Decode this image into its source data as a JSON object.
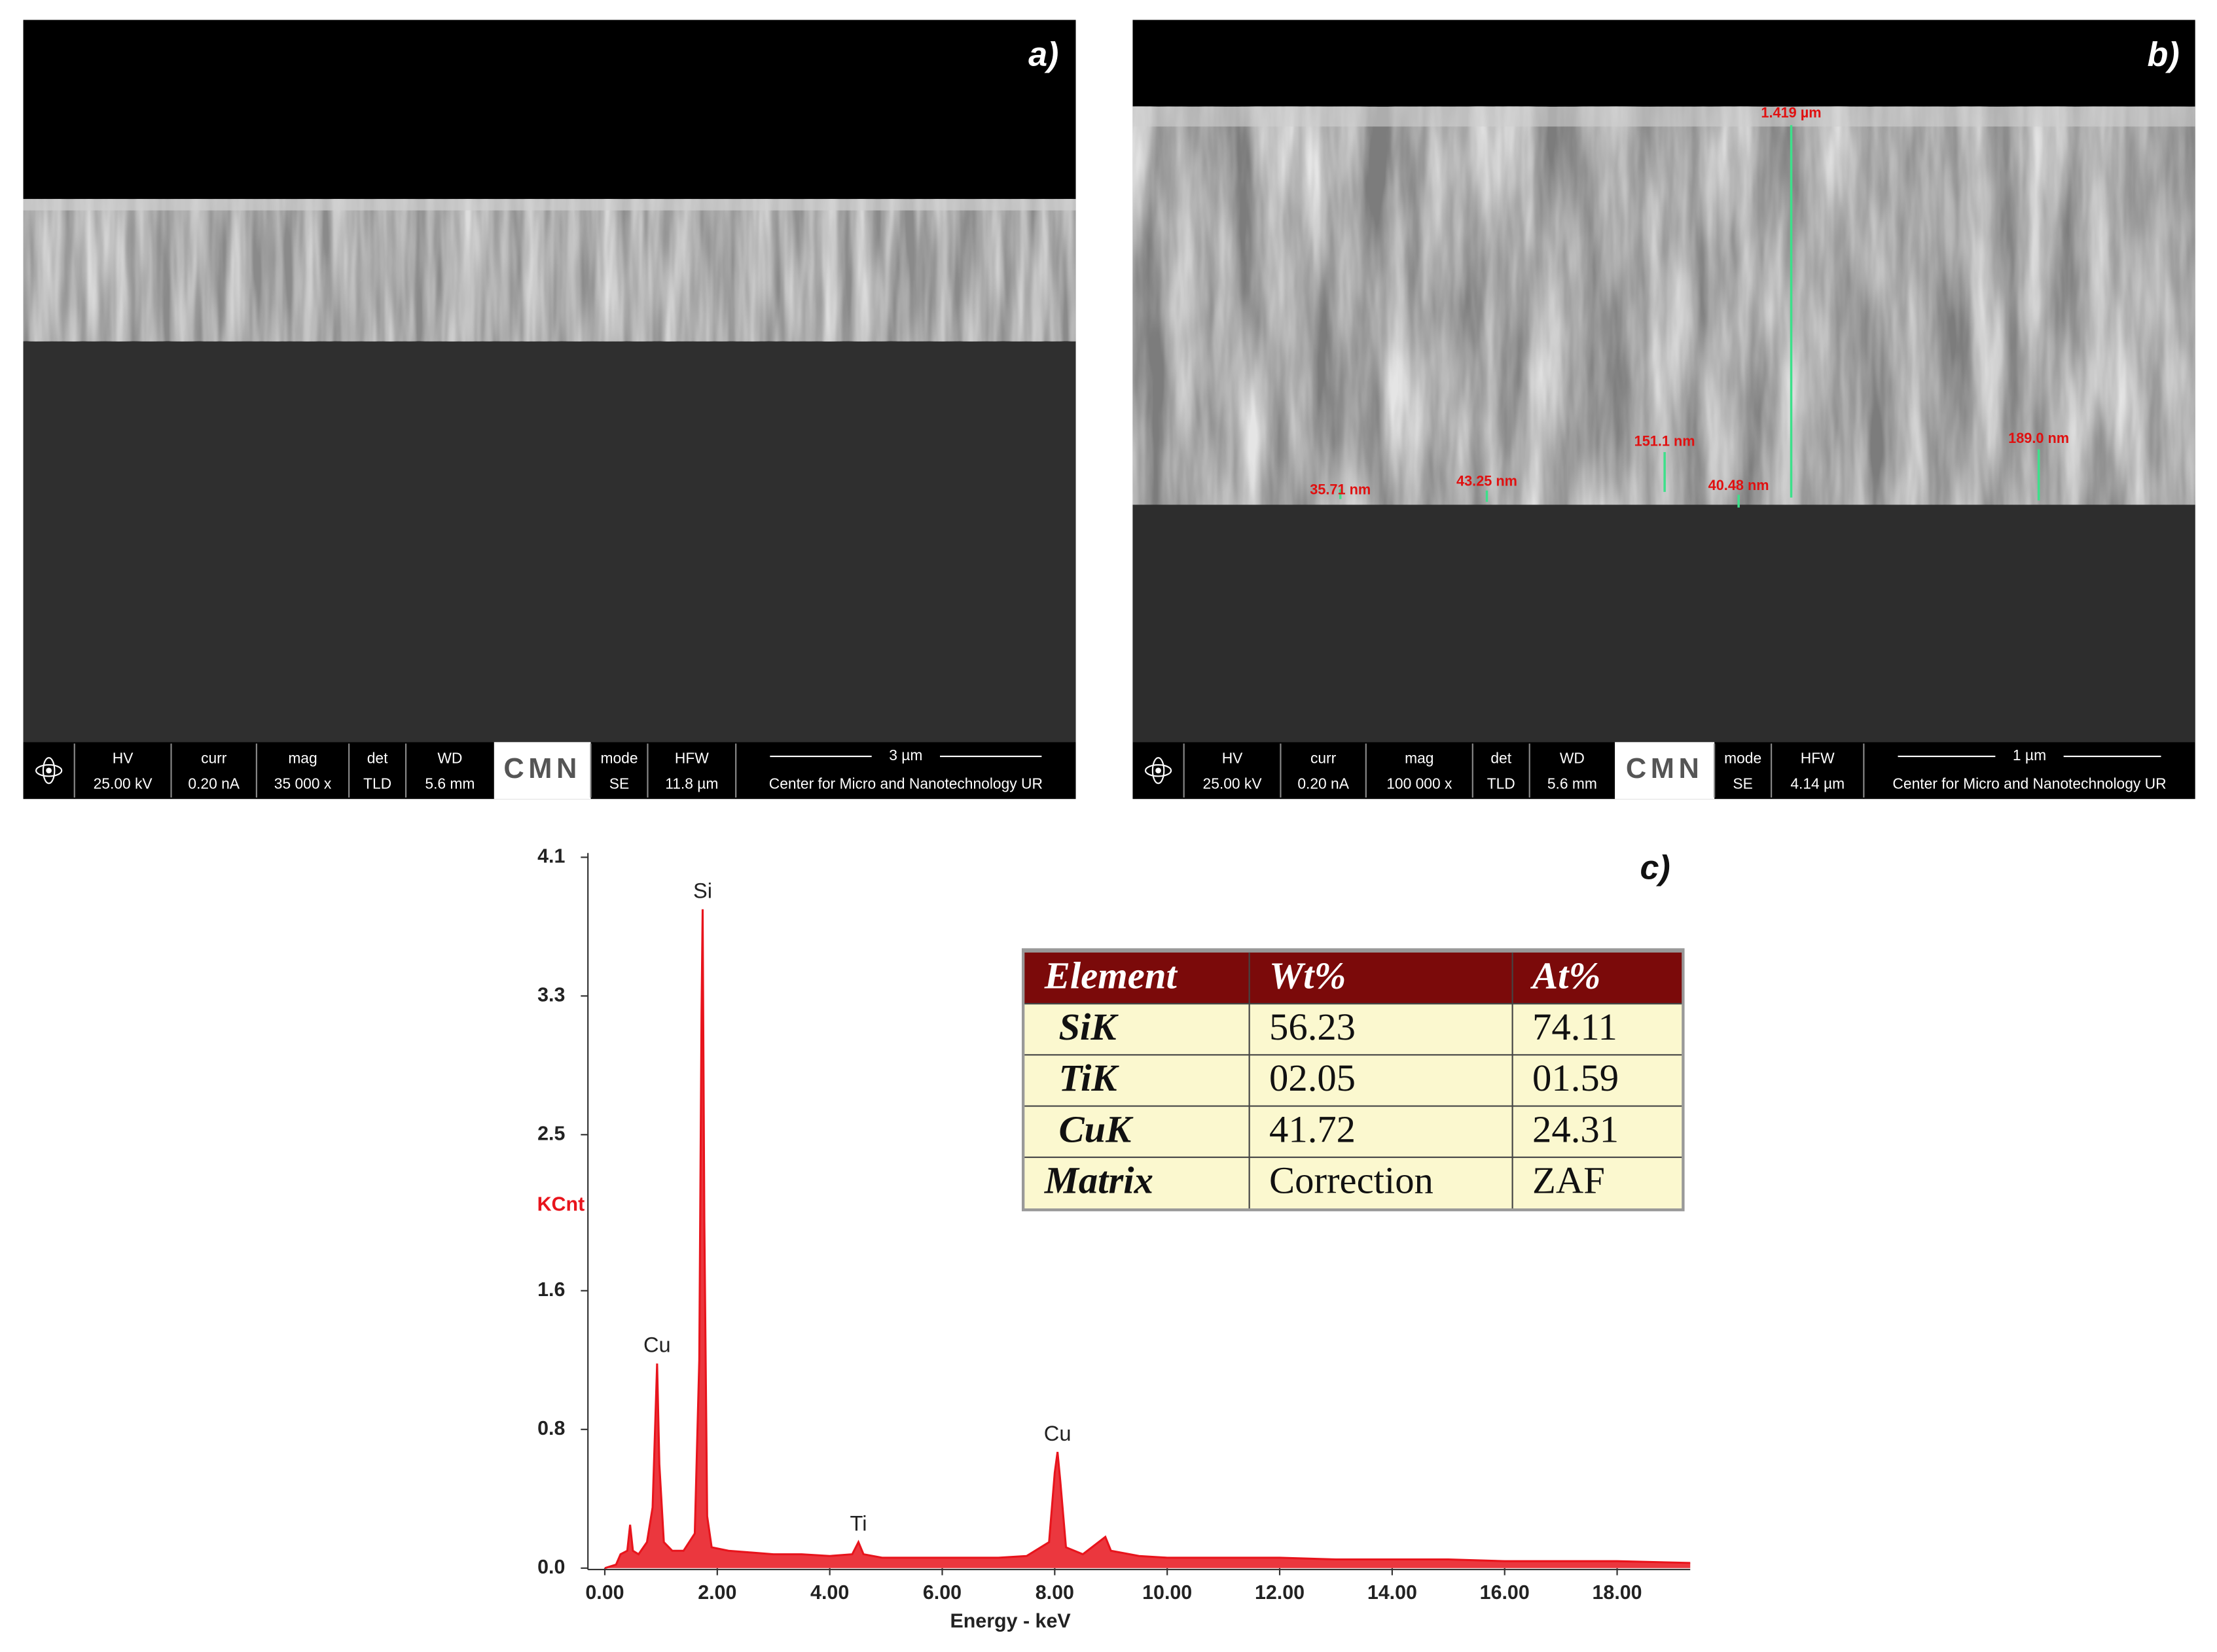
{
  "panels": [
    {
      "label": "a)",
      "info_bar": {
        "cells": [
          {
            "label": "HV",
            "value": "25.00 kV"
          },
          {
            "label": "curr",
            "value": "0.20 nA"
          },
          {
            "label": "mag",
            "value": "35 000 x"
          },
          {
            "label": "det",
            "value": "TLD"
          },
          {
            "label": "WD",
            "value": "5.6 mm"
          },
          {
            "label": "mode",
            "value": "SE"
          },
          {
            "label": "HFW",
            "value": "11.8 µm"
          }
        ],
        "logo": "CMN",
        "scale_bar": "3 µm",
        "institution": "Center for Micro and Nanotechnology UR"
      }
    },
    {
      "label": "b)",
      "measurements": [
        "1.419 µm",
        "151.1 nm",
        "189.0 nm",
        "43.25 nm",
        "40.48 nm",
        "35.71 nm"
      ],
      "info_bar": {
        "cells": [
          {
            "label": "HV",
            "value": "25.00 kV"
          },
          {
            "label": "curr",
            "value": "0.20 nA"
          },
          {
            "label": "mag",
            "value": "100 000 x"
          },
          {
            "label": "det",
            "value": "TLD"
          },
          {
            "label": "WD",
            "value": "5.6 mm"
          },
          {
            "label": "mode",
            "value": "SE"
          },
          {
            "label": "HFW",
            "value": "4.14 µm"
          }
        ],
        "logo": "CMN",
        "scale_bar": "1 µm",
        "institution": "Center for Micro and Nanotechnology UR"
      }
    }
  ],
  "chart_data": {
    "type": "area",
    "label": "c)",
    "x_label": "Energy - keV",
    "y_label": "KCnt",
    "color": "#e8141c",
    "x": [
      0.0,
      0.2,
      0.28,
      0.4,
      0.45,
      0.5,
      0.6,
      0.75,
      0.85,
      0.93,
      0.97,
      1.05,
      1.2,
      1.4,
      1.6,
      1.68,
      1.72,
      1.74,
      1.77,
      1.82,
      1.9,
      2.2,
      2.6,
      3.0,
      3.5,
      4.0,
      4.4,
      4.51,
      4.6,
      4.93,
      5.5,
      6.0,
      6.5,
      7.0,
      7.5,
      7.9,
      8.0,
      8.05,
      8.1,
      8.2,
      8.5,
      8.9,
      9.0,
      9.5,
      10.0,
      11.0,
      12.0,
      13.0,
      14.0,
      15.0,
      16.0,
      17.0,
      18.0,
      19.3
    ],
    "values": [
      0.0,
      0.02,
      0.08,
      0.1,
      0.25,
      0.1,
      0.08,
      0.15,
      0.35,
      1.18,
      0.6,
      0.15,
      0.1,
      0.1,
      0.2,
      1.2,
      3.2,
      3.8,
      2.0,
      0.3,
      0.12,
      0.1,
      0.09,
      0.08,
      0.08,
      0.07,
      0.08,
      0.15,
      0.08,
      0.06,
      0.06,
      0.06,
      0.06,
      0.06,
      0.07,
      0.15,
      0.55,
      0.67,
      0.5,
      0.12,
      0.08,
      0.18,
      0.1,
      0.07,
      0.06,
      0.06,
      0.06,
      0.05,
      0.05,
      0.05,
      0.04,
      0.04,
      0.04,
      0.03
    ],
    "xlim": [
      -0.3,
      19.3
    ],
    "ylim": [
      0,
      4.1
    ],
    "xticks": [
      {
        "value": 0,
        "label": "0.00"
      },
      {
        "value": 2,
        "label": "2.00"
      },
      {
        "value": 4,
        "label": "4.00"
      },
      {
        "value": 6,
        "label": "6.00"
      },
      {
        "value": 8,
        "label": "8.00"
      },
      {
        "value": 10,
        "label": "10.00"
      },
      {
        "value": 12,
        "label": "12.00"
      },
      {
        "value": 14,
        "label": "14.00"
      },
      {
        "value": 16,
        "label": "16.00"
      },
      {
        "value": 18,
        "label": "18.00"
      }
    ],
    "yticks": [
      {
        "value": 0,
        "label": "0.0"
      },
      0.8,
      1.6,
      2.5,
      3.3,
      4.1
    ],
    "annotations": [
      {
        "text": "Si",
        "x": 1.74,
        "y": 3.8
      },
      {
        "text": "Cu",
        "x": 0.93,
        "y": 1.18
      },
      {
        "text": "Cu",
        "x": 8.05,
        "y": 0.67
      },
      {
        "text": "Ti",
        "x": 4.51,
        "y": 0.15
      }
    ]
  },
  "table": {
    "header": [
      "Element",
      "Wt%",
      "At%"
    ],
    "rows": [
      [
        "SiK",
        "56.23",
        "74.11"
      ],
      [
        "TiK",
        "02.05",
        "01.59"
      ],
      [
        "CuK",
        "41.72",
        "24.31"
      ],
      [
        "Matrix",
        "Correction",
        "ZAF"
      ]
    ]
  }
}
